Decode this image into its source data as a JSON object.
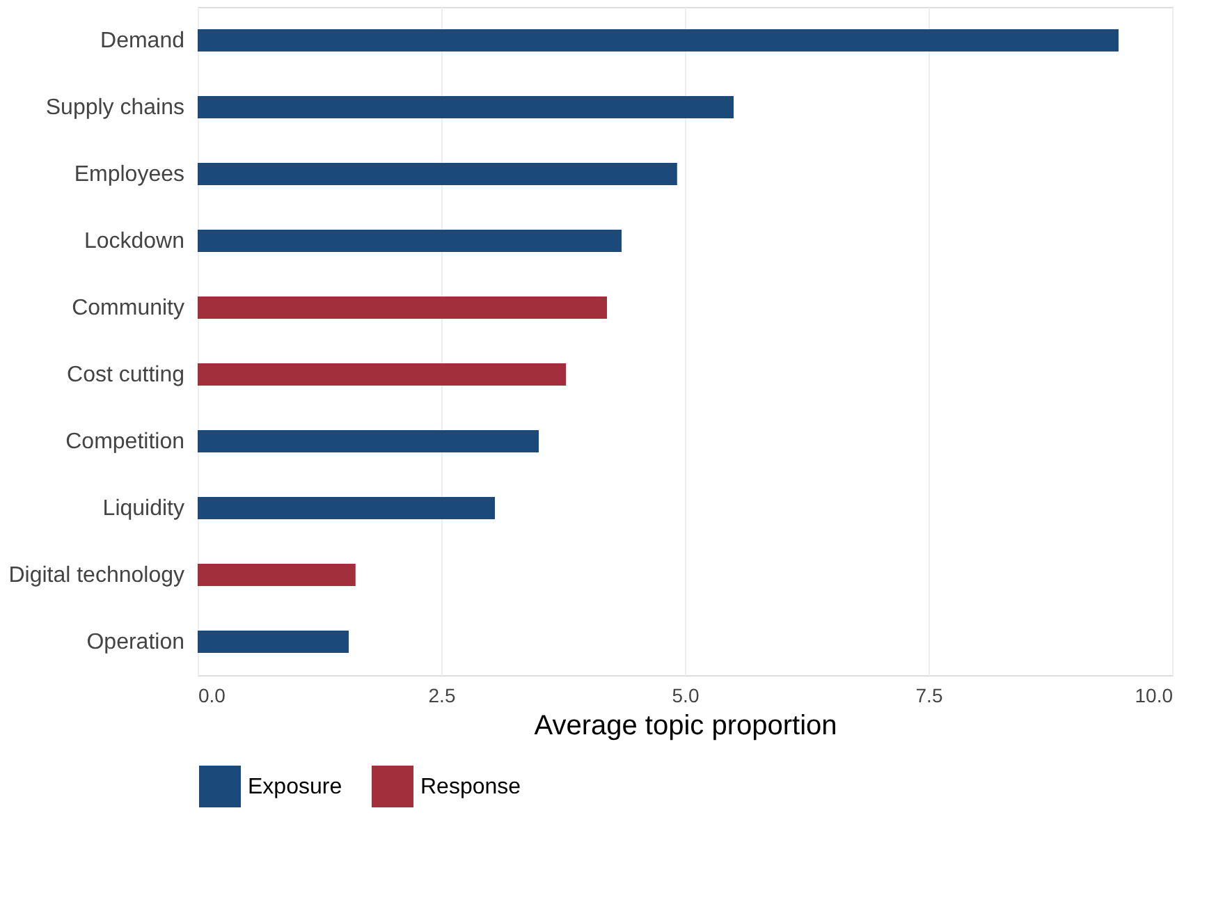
{
  "chart_data": {
    "type": "bar",
    "orientation": "horizontal",
    "xlabel": "Average topic proportion",
    "categories": [
      "Demand",
      "Supply chains",
      "Employees",
      "Lockdown",
      "Community",
      "Cost cutting",
      "Competition",
      "Liquidity",
      "Digital technology",
      "Operation"
    ],
    "series": [
      {
        "name": "Exposure",
        "color": "#1b4a7a",
        "values": [
          9.45,
          5.5,
          4.92,
          4.35,
          null,
          null,
          3.5,
          3.05,
          null,
          1.55
        ]
      },
      {
        "name": "Response",
        "color": "#a1303c",
        "values": [
          null,
          null,
          null,
          null,
          4.2,
          3.78,
          null,
          null,
          1.62,
          null
        ]
      }
    ],
    "xlim": [
      0,
      10
    ],
    "xticks": [
      {
        "value": 0,
        "label": "0.0"
      },
      {
        "value": 2.5,
        "label": "2.5"
      },
      {
        "value": 5,
        "label": "5.0"
      },
      {
        "value": 7.5,
        "label": "7.5"
      },
      {
        "value": 10,
        "label": "10.0"
      }
    ],
    "grid": "x",
    "legend": "bottom"
  }
}
